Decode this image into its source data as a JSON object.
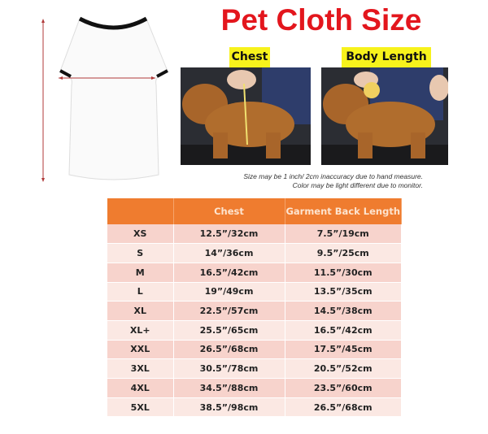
{
  "title": "Pet Cloth Size",
  "labels": {
    "chest": "Chest",
    "body_length": "Body Length"
  },
  "notes": [
    "Size may be 1 inch/ 2cm inaccuracy due to hand measure.",
    "Color may be light different due to monitor."
  ],
  "table": {
    "headers": [
      "",
      "Chest",
      "Garment Back Length"
    ],
    "rows": [
      [
        "XS",
        "12.5”/32cm",
        "7.5”/19cm"
      ],
      [
        "S",
        "14”/36cm",
        "9.5”/25cm"
      ],
      [
        "M",
        "16.5”/42cm",
        "11.5”/30cm"
      ],
      [
        "L",
        "19”/49cm",
        "13.5”/35cm"
      ],
      [
        "XL",
        "22.5”/57cm",
        "14.5”/38cm"
      ],
      [
        "XL+",
        "25.5”/65cm",
        "16.5”/42cm"
      ],
      [
        "XXL",
        "26.5”/68cm",
        "17.5”/45cm"
      ],
      [
        "3XL",
        "30.5”/78cm",
        "20.5”/52cm"
      ],
      [
        "4XL",
        "34.5”/88cm",
        "23.5”/60cm"
      ],
      [
        "5XL",
        "38.5”/98cm",
        "26.5”/68cm"
      ]
    ]
  },
  "colors": {
    "title": "#e3161d",
    "header": "#ef7c2f",
    "label_bg": "#f7f21c",
    "arrow": "#b03a3a"
  }
}
